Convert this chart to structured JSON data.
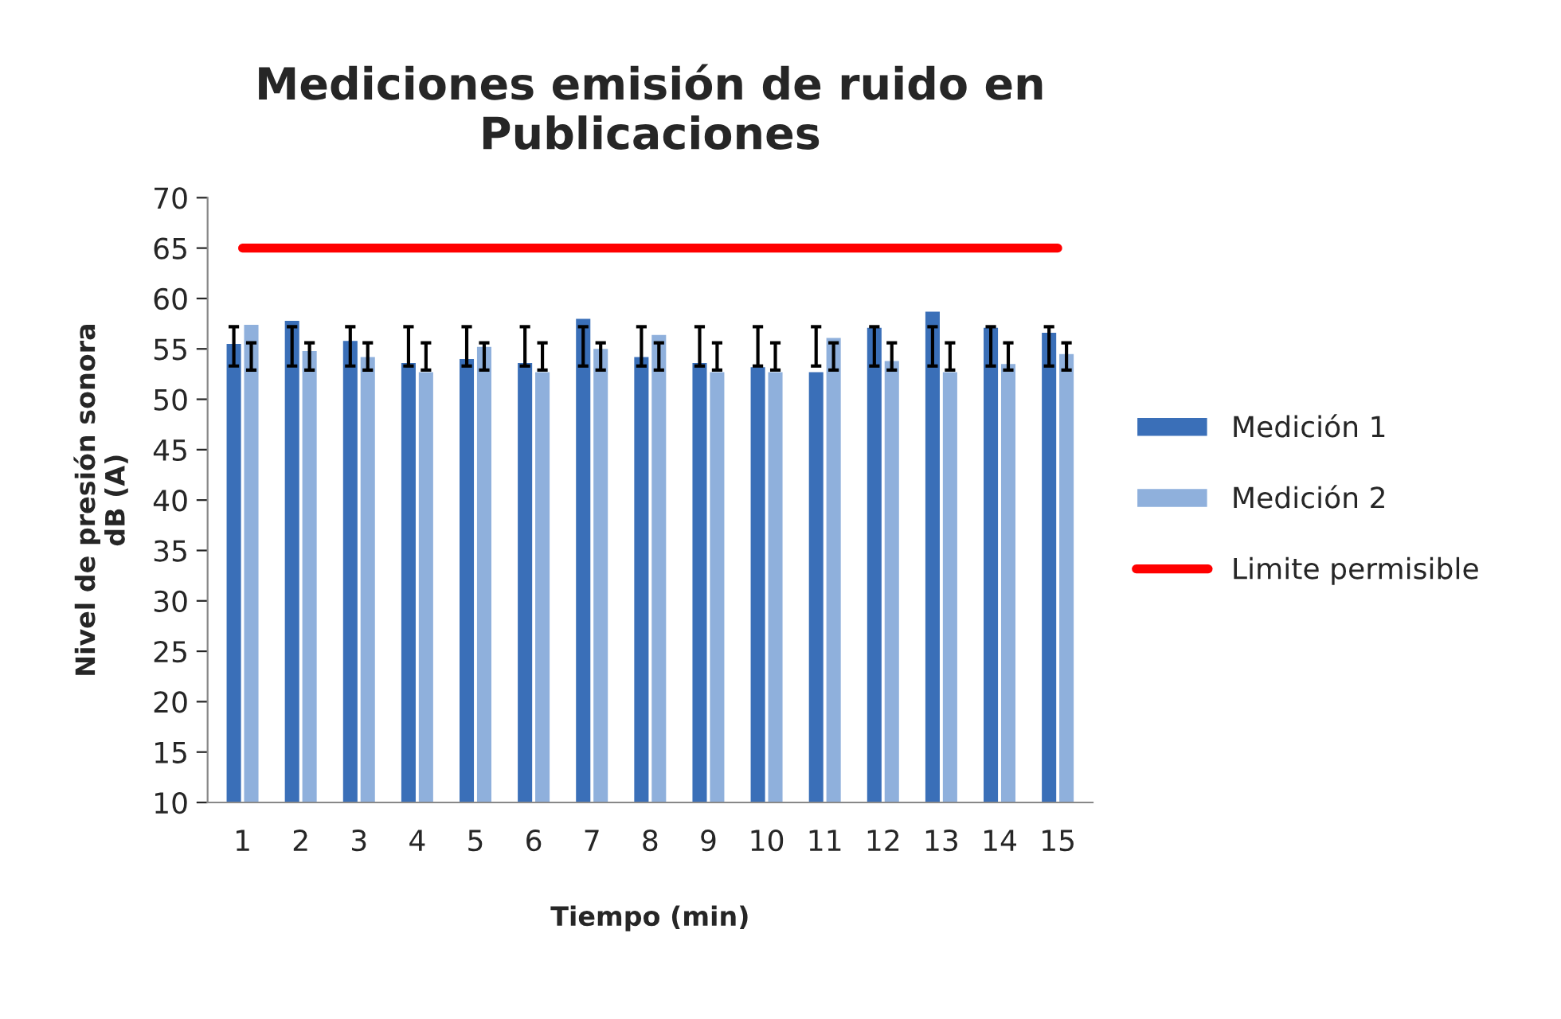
{
  "chart_data": {
    "type": "bar",
    "title": "Mediciones emisión de ruido en\nPublicaciones",
    "xlabel": "Tiempo (min)",
    "ylabel": "Nivel de presión sonora\ndB (A)",
    "categories": [
      "1",
      "2",
      "3",
      "4",
      "5",
      "6",
      "7",
      "8",
      "9",
      "10",
      "11",
      "12",
      "13",
      "14",
      "15"
    ],
    "series": [
      {
        "name": "Medición 1",
        "color": "#3a6fb8",
        "values": [
          55.6,
          57.9,
          55.9,
          53.7,
          54.1,
          53.7,
          58.1,
          54.3,
          53.7,
          53.3,
          52.8,
          57.2,
          58.8,
          57.2,
          56.7
        ],
        "errors": [
          [
            53.3,
            57.2
          ],
          [
            53.3,
            57.2
          ],
          [
            53.3,
            57.2
          ],
          [
            53.3,
            57.2
          ],
          [
            53.3,
            57.2
          ],
          [
            53.3,
            57.2
          ],
          [
            53.3,
            57.2
          ],
          [
            53.3,
            57.2
          ],
          [
            53.3,
            57.2
          ],
          [
            53.3,
            57.2
          ],
          [
            53.3,
            57.2
          ],
          [
            53.3,
            57.2
          ],
          [
            53.3,
            57.2
          ],
          [
            53.3,
            57.2
          ],
          [
            53.3,
            57.2
          ]
        ]
      },
      {
        "name": "Medición 2",
        "color": "#8fb0dc",
        "values": [
          57.5,
          54.9,
          54.3,
          52.8,
          55.3,
          52.8,
          55.1,
          56.5,
          52.8,
          52.8,
          56.2,
          53.9,
          52.8,
          53.6,
          54.6
        ],
        "errors": [
          [
            52.9,
            55.6
          ],
          [
            52.9,
            55.6
          ],
          [
            52.9,
            55.6
          ],
          [
            52.9,
            55.6
          ],
          [
            52.9,
            55.6
          ],
          [
            52.9,
            55.6
          ],
          [
            52.9,
            55.6
          ],
          [
            52.9,
            55.6
          ],
          [
            52.9,
            55.6
          ],
          [
            52.9,
            55.6
          ],
          [
            52.9,
            55.6
          ],
          [
            52.9,
            55.6
          ],
          [
            52.9,
            55.6
          ],
          [
            52.9,
            55.6
          ],
          [
            52.9,
            55.6
          ]
        ]
      },
      {
        "name": "Limite permisible",
        "type": "line",
        "color": "#ff0000",
        "values": [
          65,
          65,
          65,
          65,
          65,
          65,
          65,
          65,
          65,
          65,
          65,
          65,
          65,
          65,
          65
        ]
      }
    ],
    "ylim": [
      10,
      70
    ],
    "yticks": [
      10,
      15,
      20,
      25,
      30,
      35,
      40,
      45,
      50,
      55,
      60,
      65,
      70
    ],
    "grid": false,
    "legend": "right"
  }
}
